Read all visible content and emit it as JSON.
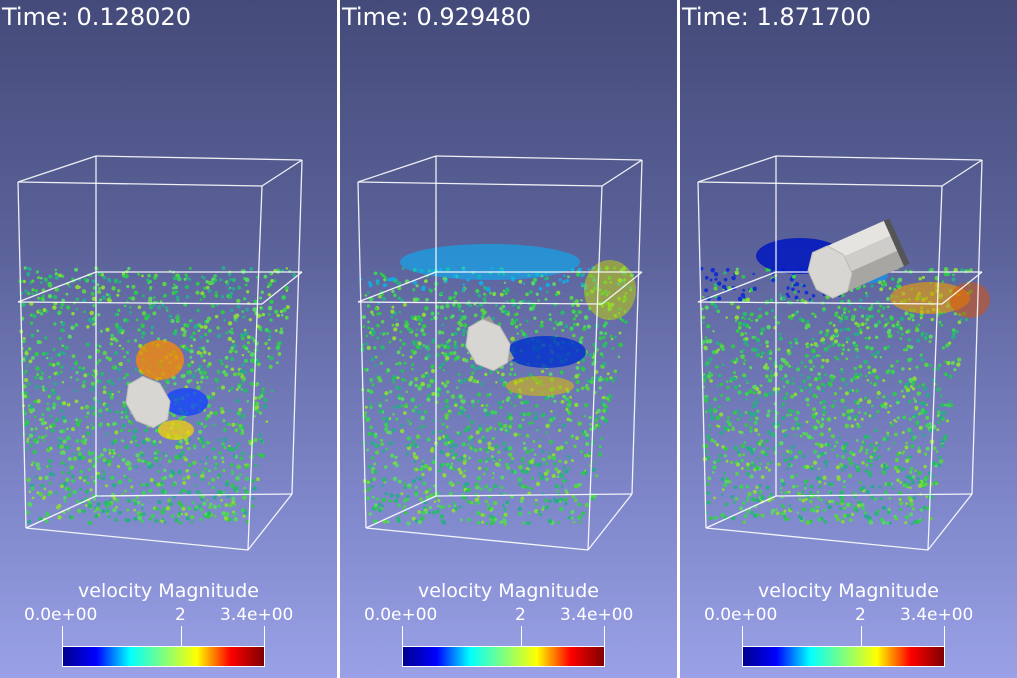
{
  "panels": [
    {
      "time_label": "Time: 0.128020",
      "body_state": "submerged-center"
    },
    {
      "time_label": "Time: 0.929480",
      "body_state": "rising"
    },
    {
      "time_label": "Time: 1.871700",
      "body_state": "surface-floating"
    }
  ],
  "legend": {
    "title": "velocity Magnitude",
    "min_label": "0.0e+00",
    "mid_label": "2",
    "max_label": "3.4e+00",
    "range": [
      0.0,
      3.4
    ],
    "mid_value": 2
  },
  "colors": {
    "bg_top": "#444b7a",
    "bg_bottom": "#9aa1e6",
    "colormap": [
      "#00008f",
      "#0000ff",
      "#00ffff",
      "#7fff7f",
      "#ffff00",
      "#ff0000",
      "#800000"
    ],
    "particle_base": "#3ccf5a",
    "body": "#d8d6d2",
    "box": "#ffffff"
  }
}
